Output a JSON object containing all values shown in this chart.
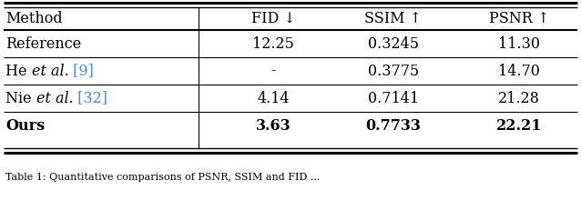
{
  "columns": [
    "Method",
    "FID ↓",
    "SSIM ↑",
    "PSNR ↑"
  ],
  "rows": [
    {
      "method_parts": [
        {
          "text": "Reference",
          "style": "normal",
          "color": "black"
        }
      ],
      "fid": "12.25",
      "ssim": "0.3245",
      "psnr": "11.30",
      "bold": false
    },
    {
      "method_parts": [
        {
          "text": "He ",
          "style": "normal",
          "color": "black"
        },
        {
          "text": "et al.",
          "style": "italic",
          "color": "black"
        },
        {
          "text": " [9]",
          "style": "normal",
          "color": "blue"
        }
      ],
      "fid": "-",
      "ssim": "0.3775",
      "psnr": "14.70",
      "bold": false
    },
    {
      "method_parts": [
        {
          "text": "Nie ",
          "style": "normal",
          "color": "black"
        },
        {
          "text": "et al.",
          "style": "italic",
          "color": "black"
        },
        {
          "text": " [32]",
          "style": "normal",
          "color": "blue"
        }
      ],
      "fid": "4.14",
      "ssim": "0.7141",
      "psnr": "21.28",
      "bold": false
    },
    {
      "method_parts": [
        {
          "text": "Ours",
          "style": "normal",
          "color": "black"
        }
      ],
      "fid": "3.63",
      "ssim": "0.7733",
      "psnr": "22.21",
      "bold": true
    }
  ],
  "background_color": "#ffffff",
  "text_color": "#000000",
  "blue_color": "#4a90d9",
  "fontsize": 11.5,
  "caption_fontsize": 8.0,
  "caption": "Table 1: Quantitative comparisons of PSNR, SSIM and FID ..."
}
